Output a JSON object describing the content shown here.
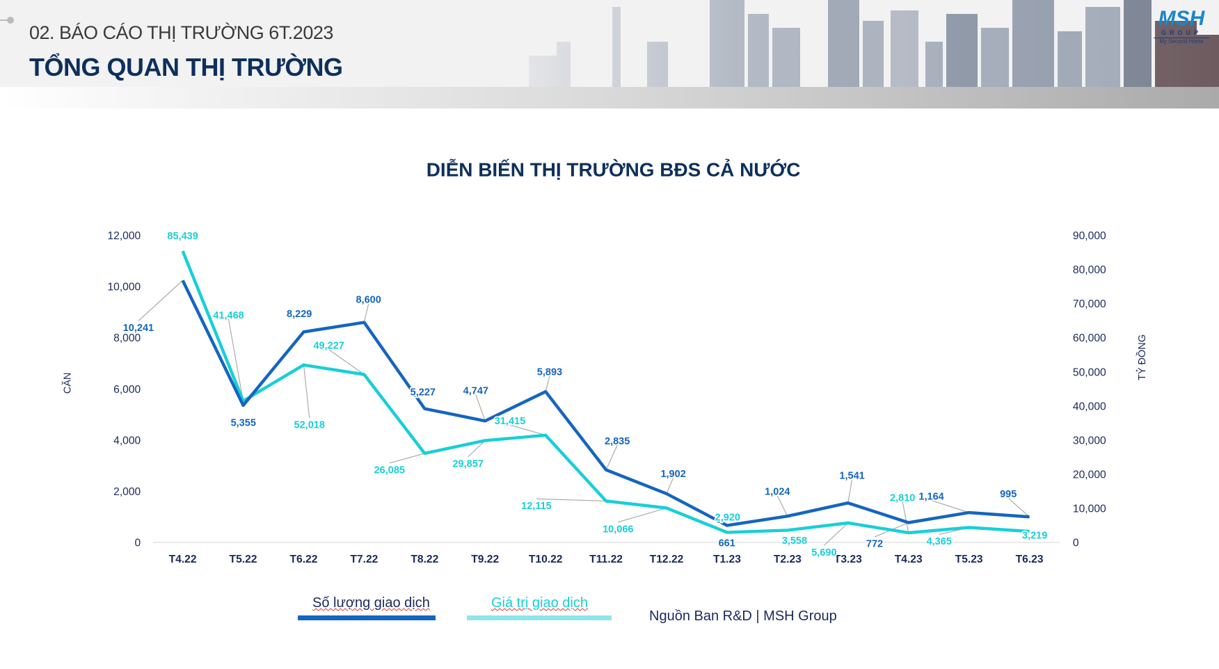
{
  "header": {
    "subtitle": "02. BÁO CÁO THỊ TRƯỜNG 6T.2023",
    "title": "TỔNG QUAN THỊ TRƯỜNG",
    "logo": {
      "mark": "MSH",
      "group": "GROUP",
      "tagline": "My Second Home"
    }
  },
  "legend": {
    "series1": "Số lượng giao dịch",
    "series2": "Giá trị giao dịch"
  },
  "source": "Nguồn Ban R&D | MSH Group",
  "colors": {
    "series1": "#1565c0",
    "series2": "#17cfd8",
    "axis_text": "#1a2a5a",
    "title": "#0d2f5c"
  },
  "chart_data": {
    "type": "line",
    "title": "DIỄN BIẾN THỊ TRƯỜNG BĐS CẢ NƯỚC",
    "xlabel": "",
    "ylabel": "CĂN",
    "y2label": "TỶ ĐỒNG",
    "ylim": [
      0,
      12000
    ],
    "y2lim": [
      0,
      90000
    ],
    "yticks": [
      "0",
      "2,000",
      "4,000",
      "6,000",
      "8,000",
      "10,000",
      "12,000"
    ],
    "y2ticks": [
      "0",
      "10,000",
      "20,000",
      "30,000",
      "40,000",
      "50,000",
      "60,000",
      "70,000",
      "80,000",
      "90,000"
    ],
    "categories": [
      "T4.22",
      "T5.22",
      "T6.22",
      "T7.22",
      "T8.22",
      "T9.22",
      "T10.22",
      "T11.22",
      "T12.22",
      "T1.23",
      "T2.23",
      "T3.23",
      "T4.23",
      "T5.23",
      "T6.23"
    ],
    "series": [
      {
        "name": "Số lượng giao dịch",
        "axis": "left",
        "values": [
          10241,
          5355,
          8229,
          8600,
          5227,
          4747,
          5893,
          2835,
          1902,
          661,
          1024,
          1541,
          772,
          1164,
          995
        ],
        "labels": [
          "10,241",
          "5,355",
          "8,229",
          "8,600",
          "5,227",
          "4,747",
          "5,893",
          "2,835",
          "1,902",
          "661",
          "1,024",
          "1,541",
          "772",
          "1,164",
          "995"
        ]
      },
      {
        "name": "Giá trị giao dịch",
        "axis": "right",
        "values": [
          85439,
          41468,
          52018,
          49227,
          26085,
          29857,
          31415,
          12115,
          10066,
          2920,
          3558,
          5690,
          2810,
          4365,
          3219
        ],
        "labels": [
          "85,439",
          "41,468",
          "52,018",
          "49,227",
          "26,085",
          "29,857",
          "31,415",
          "12,115",
          "10,066",
          "2,920",
          "3,558",
          "5,690",
          "2,810",
          "4,365",
          "3,219"
        ]
      }
    ],
    "grid": false,
    "legend_position": "bottom-left"
  }
}
